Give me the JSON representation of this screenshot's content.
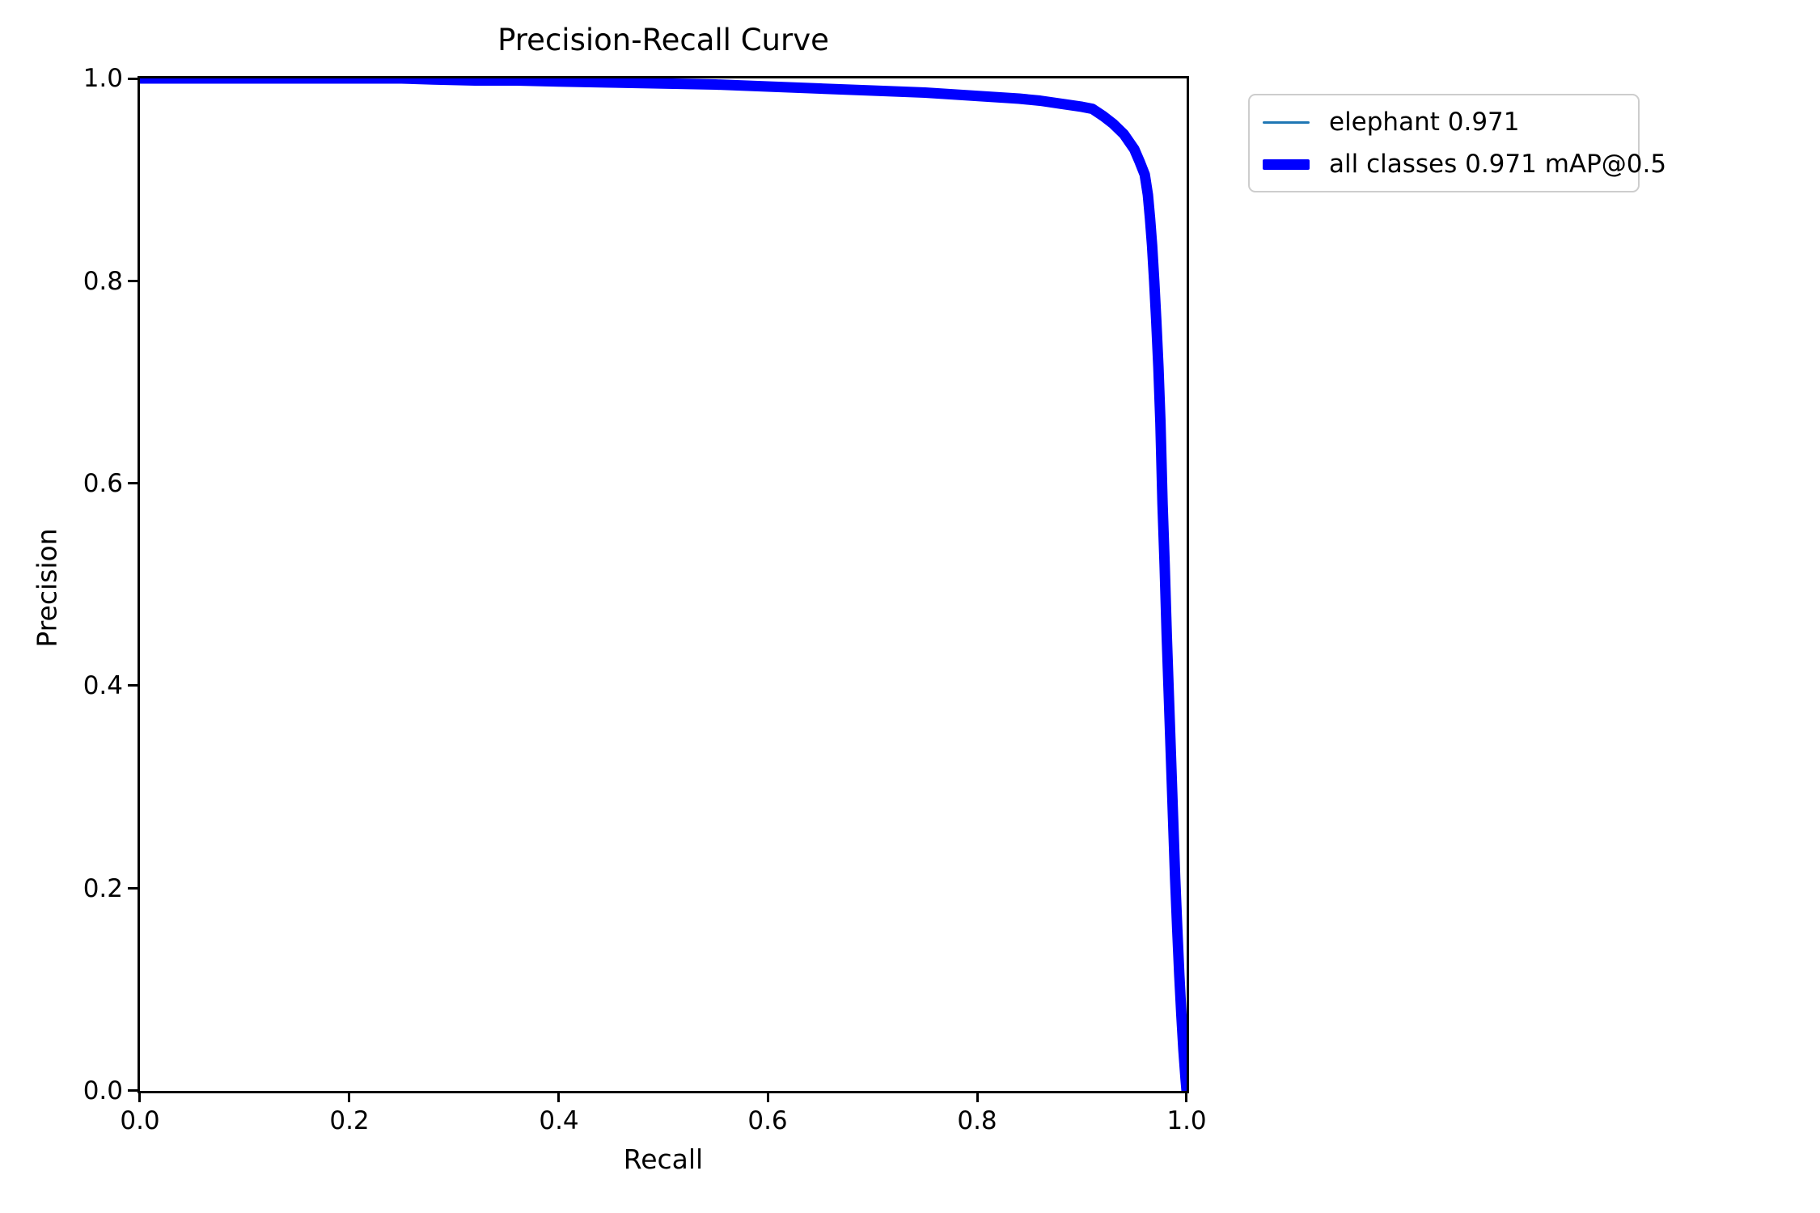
{
  "figure": {
    "background": "#ffffff",
    "axis_color": "#000000",
    "legend_border_color": "#cdcdcd"
  },
  "chart_data": {
    "type": "line",
    "title": "Precision-Recall Curve",
    "xlabel": "Recall",
    "ylabel": "Precision",
    "xlim": [
      0.0,
      1.0
    ],
    "ylim": [
      0.0,
      1.0
    ],
    "x_ticks": [
      "0.0",
      "0.2",
      "0.4",
      "0.6",
      "0.8",
      "1.0"
    ],
    "y_ticks": [
      "0.0",
      "0.2",
      "0.4",
      "0.6",
      "0.8",
      "1.0"
    ],
    "grid": false,
    "legend_position": "outside-upper-right",
    "points_recall_precision": [
      [
        0.0,
        1.0
      ],
      [
        0.05,
        1.0
      ],
      [
        0.1,
        1.0
      ],
      [
        0.15,
        1.0
      ],
      [
        0.2,
        1.0
      ],
      [
        0.25,
        1.0
      ],
      [
        0.28,
        0.999
      ],
      [
        0.32,
        0.998
      ],
      [
        0.36,
        0.998
      ],
      [
        0.4,
        0.997
      ],
      [
        0.45,
        0.996
      ],
      [
        0.5,
        0.995
      ],
      [
        0.55,
        0.994
      ],
      [
        0.6,
        0.992
      ],
      [
        0.65,
        0.99
      ],
      [
        0.7,
        0.988
      ],
      [
        0.75,
        0.986
      ],
      [
        0.78,
        0.984
      ],
      [
        0.81,
        0.982
      ],
      [
        0.84,
        0.98
      ],
      [
        0.86,
        0.978
      ],
      [
        0.88,
        0.975
      ],
      [
        0.9,
        0.972
      ],
      [
        0.91,
        0.97
      ],
      [
        0.92,
        0.963
      ],
      [
        0.93,
        0.955
      ],
      [
        0.94,
        0.945
      ],
      [
        0.95,
        0.93
      ],
      [
        0.955,
        0.918
      ],
      [
        0.96,
        0.905
      ],
      [
        0.963,
        0.885
      ],
      [
        0.965,
        0.862
      ],
      [
        0.967,
        0.835
      ],
      [
        0.969,
        0.8
      ],
      [
        0.971,
        0.76
      ],
      [
        0.973,
        0.715
      ],
      [
        0.975,
        0.66
      ],
      [
        0.977,
        0.58
      ],
      [
        0.979,
        0.52
      ],
      [
        0.981,
        0.45
      ],
      [
        0.983,
        0.39
      ],
      [
        0.985,
        0.33
      ],
      [
        0.987,
        0.27
      ],
      [
        0.989,
        0.21
      ],
      [
        0.991,
        0.16
      ],
      [
        0.993,
        0.115
      ],
      [
        0.995,
        0.075
      ],
      [
        0.997,
        0.04
      ],
      [
        0.999,
        0.012
      ],
      [
        1.0,
        0.0
      ]
    ],
    "series": [
      {
        "name": "elephant 0.971",
        "color": "#1f77b4",
        "stroke_px": 3,
        "points": "shared"
      },
      {
        "name": "all classes 0.971 mAP@0.5",
        "color": "#0000ff",
        "stroke_px": 13,
        "points": "shared"
      }
    ]
  }
}
